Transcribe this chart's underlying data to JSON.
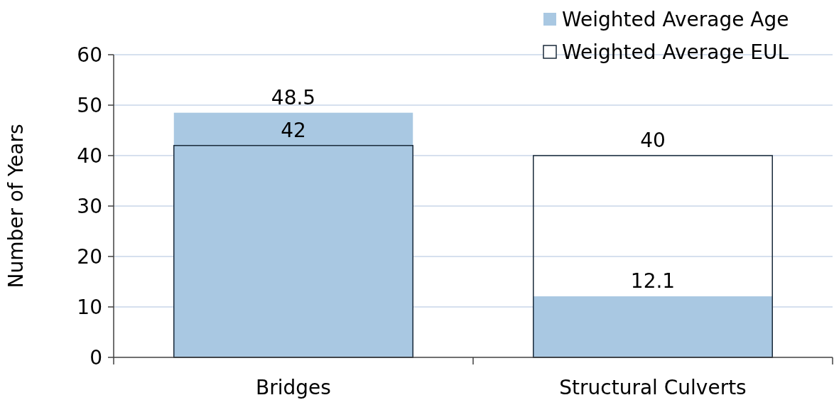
{
  "chart_data": {
    "type": "bar",
    "ylabel": "Number of Years",
    "categories": [
      "Bridges",
      "Structural Culverts"
    ],
    "series": [
      {
        "name": "Weighted Average Age",
        "color": "#a9c8e2",
        "values": [
          48.5,
          12.1
        ]
      },
      {
        "name": "Weighted Average EUL",
        "color": "#1a2a3a",
        "values": [
          42,
          40
        ]
      }
    ],
    "ylim": [
      0,
      60
    ],
    "yticks": [
      0,
      10,
      20,
      30,
      40,
      50,
      60
    ],
    "grid": "y",
    "legend": "top right",
    "data_labels": true
  }
}
